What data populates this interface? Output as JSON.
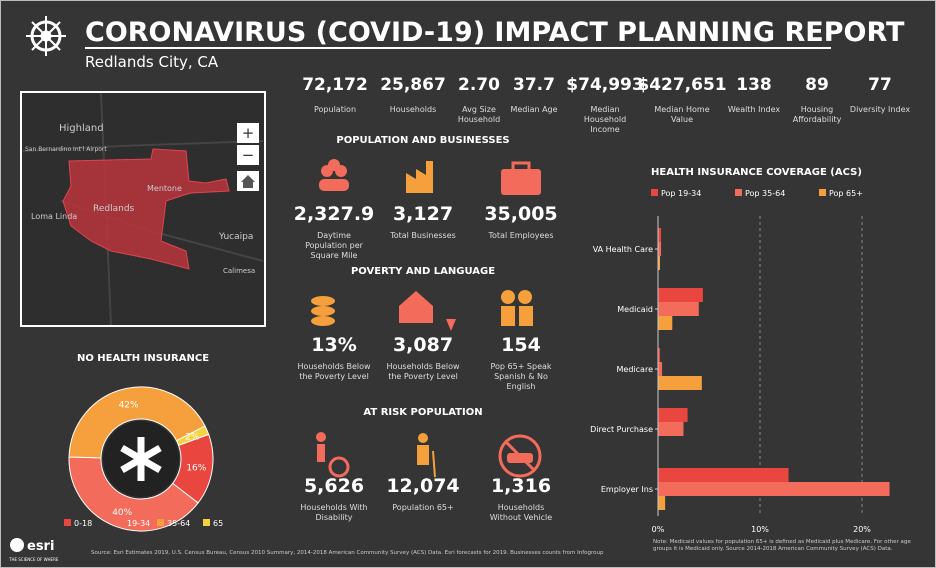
{
  "header": {
    "title": "CORONAVIRUS (COVID-19) IMPACT PLANNING REPORT",
    "subtitle": "Redlands City, CA"
  },
  "key_stats": [
    {
      "value": "72,172",
      "label": "Population"
    },
    {
      "value": "25,867",
      "label": "Households"
    },
    {
      "value": "2.70",
      "label": "Avg Size Household"
    },
    {
      "value": "37.7",
      "label": "Median Age"
    },
    {
      "value": "$74,993",
      "label": "Median Household Income"
    },
    {
      "value": "$427,651",
      "label": "Median Home Value"
    },
    {
      "value": "138",
      "label": "Wealth Index"
    },
    {
      "value": "89",
      "label": "Housing Affordability"
    },
    {
      "value": "77",
      "label": "Diversity Index"
    }
  ],
  "map": {
    "labels": [
      "Highland",
      "San Bernardino Int'l Airport",
      "Mentone",
      "Redlands",
      "Loma Linda",
      "Yucaipa",
      "Calimesa"
    ],
    "zoom_in": "+",
    "zoom_out": "−"
  },
  "sections": [
    {
      "title": "POPULATION AND BUSINESSES",
      "stats": [
        {
          "value": "2,327.9",
          "label": "Daytime Population per Square Mile"
        },
        {
          "value": "3,127",
          "label": "Total Businesses"
        },
        {
          "value": "35,005",
          "label": "Total Employees"
        }
      ]
    },
    {
      "title": "POVERTY AND LANGUAGE",
      "stats": [
        {
          "value": "13%",
          "label": "Households Below the Poverty Level"
        },
        {
          "value": "3,087",
          "label": "Households Below the Poverty Level"
        },
        {
          "value": "154",
          "label": "Pop 65+ Speak Spanish & No English"
        }
      ]
    },
    {
      "title": "AT RISK POPULATION",
      "stats": [
        {
          "value": "5,626",
          "label": "Households With Disability"
        },
        {
          "value": "12,074",
          "label": "Population 65+"
        },
        {
          "value": "1,316",
          "label": "Households Without Vehicle"
        }
      ]
    }
  ],
  "chart_data": [
    {
      "type": "pie",
      "title": "NO HEALTH INSURANCE",
      "categories": [
        "0-18",
        "19-34",
        "35-64",
        "65"
      ],
      "values": [
        16,
        40,
        42,
        2
      ],
      "value_labels": [
        "16%",
        "40%",
        "42%",
        "2%"
      ],
      "colors": [
        "#e9463f",
        "#f26b5b",
        "#f5a03c",
        "#f5d33f"
      ]
    },
    {
      "type": "bar",
      "orientation": "horizontal",
      "title": "HEALTH INSURANCE COVERAGE (ACS)",
      "categories": [
        "VA Health Care",
        "Medicaid",
        "Medicare",
        "Direct Purchase",
        "Employer Ins"
      ],
      "series": [
        {
          "name": "Pop 19-34",
          "color": "#e9463f",
          "values": [
            0.3,
            4.4,
            0.2,
            2.9,
            12.8
          ]
        },
        {
          "name": "Pop 35-64",
          "color": "#f26b5b",
          "values": [
            0.3,
            4.0,
            0.4,
            2.5,
            22.7
          ]
        },
        {
          "name": "Pop 65+",
          "color": "#f5a03c",
          "values": [
            0.2,
            1.4,
            4.3,
            0,
            0.7
          ]
        }
      ],
      "xlim": [
        0,
        25
      ],
      "xticks": [
        {
          "value": 0,
          "label": "0%"
        },
        {
          "value": 10,
          "label": "10%"
        },
        {
          "value": 20,
          "label": "20%"
        }
      ],
      "grid": true,
      "note": "Note: Medicaid values for population 65+ is defined as Medicaid plus Medicare. For other age groups it is Medicaid only. Source 2014-2018 American Community Survey (ACS) Data."
    }
  ],
  "footer": {
    "source": "Source: Esri Estimates 2019, U.S. Census Bureau, Census 2010 Summary, 2014-2018 American Community Survey (ACS) Data. Esri forecasts for 2019. Businesses counts from Infogroup",
    "logo": "esri",
    "tagline": "THE SCIENCE OF WHERE"
  }
}
